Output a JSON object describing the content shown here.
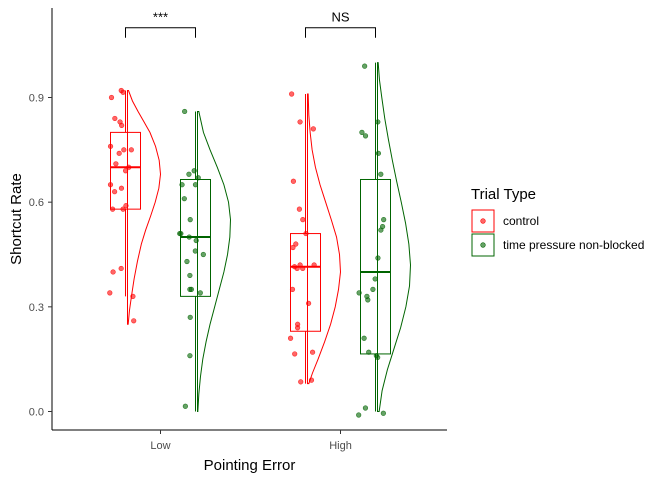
{
  "chart_data": {
    "type": "raincloud",
    "title": "",
    "xlabel": "Pointing Error",
    "ylabel": "Shortcut Rate",
    "categories": [
      "Low",
      "High"
    ],
    "ylim": [
      -0.05,
      1.15
    ],
    "yticks": [
      0.0,
      0.3,
      0.6,
      0.9
    ],
    "ytick_labels": [
      "0.0",
      "0.3",
      "0.6",
      "0.9"
    ],
    "grid": false,
    "legend": {
      "title": "Trial Type",
      "placement": "right",
      "entries": [
        "control",
        "time pressure non-blocked"
      ]
    },
    "colors": {
      "control": "#ff0000",
      "time pressure non-blocked": "#006400"
    },
    "series": [
      {
        "name": "control",
        "color": "#ff0000",
        "boxes": [
          {
            "category": "Low",
            "min": 0.33,
            "q1": 0.58,
            "median": 0.7,
            "q3": 0.8,
            "max": 0.92
          },
          {
            "category": "High",
            "min": 0.08,
            "q1": 0.23,
            "median": 0.415,
            "q3": 0.51,
            "max": 0.91
          }
        ],
        "density": [
          {
            "category": "Low",
            "y": [
              0.25,
              0.29,
              0.33,
              0.38,
              0.43,
              0.48,
              0.52,
              0.56,
              0.6,
              0.64,
              0.68,
              0.72,
              0.76,
              0.8,
              0.83,
              0.86,
              0.89,
              0.92
            ],
            "d": [
              0.02,
              0.06,
              0.12,
              0.2,
              0.3,
              0.42,
              0.55,
              0.7,
              0.84,
              0.95,
              1.0,
              0.96,
              0.85,
              0.68,
              0.5,
              0.32,
              0.15,
              0.03
            ]
          },
          {
            "category": "High",
            "y": [
              0.08,
              0.11,
              0.15,
              0.2,
              0.25,
              0.3,
              0.35,
              0.4,
              0.45,
              0.5,
              0.55,
              0.6,
              0.65,
              0.7,
              0.75,
              0.8,
              0.85,
              0.91
            ],
            "d": [
              0.04,
              0.15,
              0.32,
              0.52,
              0.7,
              0.84,
              0.94,
              1.0,
              0.97,
              0.88,
              0.72,
              0.55,
              0.38,
              0.24,
              0.14,
              0.08,
              0.04,
              0.02
            ]
          }
        ],
        "points": [
          {
            "category": "Low",
            "values": [
              0.92,
              0.915,
              0.9,
              0.84,
              0.83,
              0.82,
              0.76,
              0.75,
              0.75,
              0.74,
              0.71,
              0.7,
              0.69,
              0.65,
              0.64,
              0.63,
              0.59,
              0.58,
              0.58,
              0.41,
              0.4,
              0.34,
              0.33,
              0.26
            ]
          },
          {
            "category": "High",
            "values": [
              0.91,
              0.83,
              0.81,
              0.66,
              0.58,
              0.55,
              0.51,
              0.48,
              0.47,
              0.42,
              0.42,
              0.415,
              0.41,
              0.41,
              0.35,
              0.31,
              0.25,
              0.24,
              0.21,
              0.17,
              0.165,
              0.09,
              0.085
            ]
          }
        ]
      },
      {
        "name": "time pressure non-blocked",
        "color": "#006400",
        "boxes": [
          {
            "category": "Low",
            "min": 0.0,
            "q1": 0.33,
            "median": 0.5,
            "q3": 0.665,
            "max": 0.86
          },
          {
            "category": "High",
            "min": 0.0,
            "q1": 0.165,
            "median": 0.4,
            "q3": 0.665,
            "max": 1.0
          }
        ],
        "density": [
          {
            "category": "Low",
            "y": [
              0.0,
              0.05,
              0.1,
              0.15,
              0.2,
              0.25,
              0.3,
              0.35,
              0.4,
              0.45,
              0.5,
              0.55,
              0.6,
              0.65,
              0.7,
              0.75,
              0.8,
              0.86
            ],
            "d": [
              0.01,
              0.04,
              0.09,
              0.16,
              0.26,
              0.38,
              0.52,
              0.66,
              0.8,
              0.91,
              0.98,
              1.0,
              0.94,
              0.8,
              0.6,
              0.38,
              0.18,
              0.04
            ]
          },
          {
            "category": "High",
            "y": [
              0.0,
              0.06,
              0.12,
              0.18,
              0.24,
              0.3,
              0.36,
              0.42,
              0.48,
              0.54,
              0.6,
              0.66,
              0.72,
              0.78,
              0.84,
              0.9,
              0.95,
              1.0
            ],
            "d": [
              0.05,
              0.14,
              0.3,
              0.5,
              0.7,
              0.86,
              0.97,
              1.0,
              0.95,
              0.85,
              0.72,
              0.58,
              0.45,
              0.33,
              0.22,
              0.13,
              0.06,
              0.02
            ]
          }
        ],
        "points": [
          {
            "category": "Low",
            "values": [
              0.86,
              0.69,
              0.68,
              0.67,
              0.65,
              0.65,
              0.61,
              0.55,
              0.51,
              0.51,
              0.5,
              0.49,
              0.46,
              0.45,
              0.43,
              0.39,
              0.35,
              0.35,
              0.34,
              0.27,
              0.16,
              0.015
            ]
          },
          {
            "category": "High",
            "values": [
              0.99,
              0.83,
              0.8,
              0.79,
              0.74,
              0.68,
              0.55,
              0.53,
              0.52,
              0.44,
              0.38,
              0.35,
              0.34,
              0.33,
              0.32,
              0.21,
              0.17,
              0.16,
              0.155,
              0.01,
              -0.005,
              -0.01
            ]
          }
        ]
      }
    ],
    "annotations": [
      {
        "category": "Low",
        "label": "***",
        "y": 1.1
      },
      {
        "category": "High",
        "label": "NS",
        "y": 1.1
      }
    ]
  }
}
